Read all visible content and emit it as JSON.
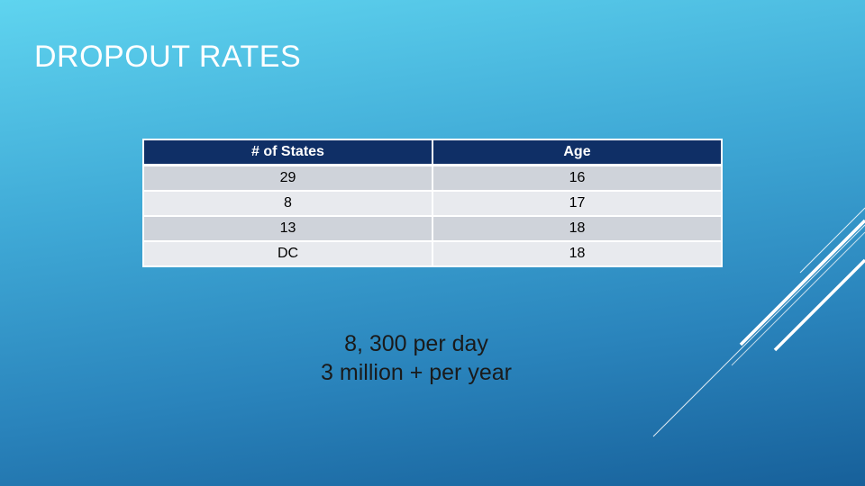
{
  "slide": {
    "title": "DROPOUT RATES"
  },
  "table": {
    "headers": [
      "# of States",
      "Age"
    ],
    "rows": [
      [
        "29",
        "16"
      ],
      [
        "8",
        "17"
      ],
      [
        "13",
        "18"
      ],
      [
        "DC",
        "18"
      ]
    ]
  },
  "summary": {
    "line1": "8, 300 per day",
    "line2": "3 million + per year"
  },
  "colors": {
    "header_bg": "#0f2f66",
    "row_odd_bg": "#cfd3da",
    "row_even_bg": "#e8eaee",
    "deco_lines": "#ffffff"
  }
}
